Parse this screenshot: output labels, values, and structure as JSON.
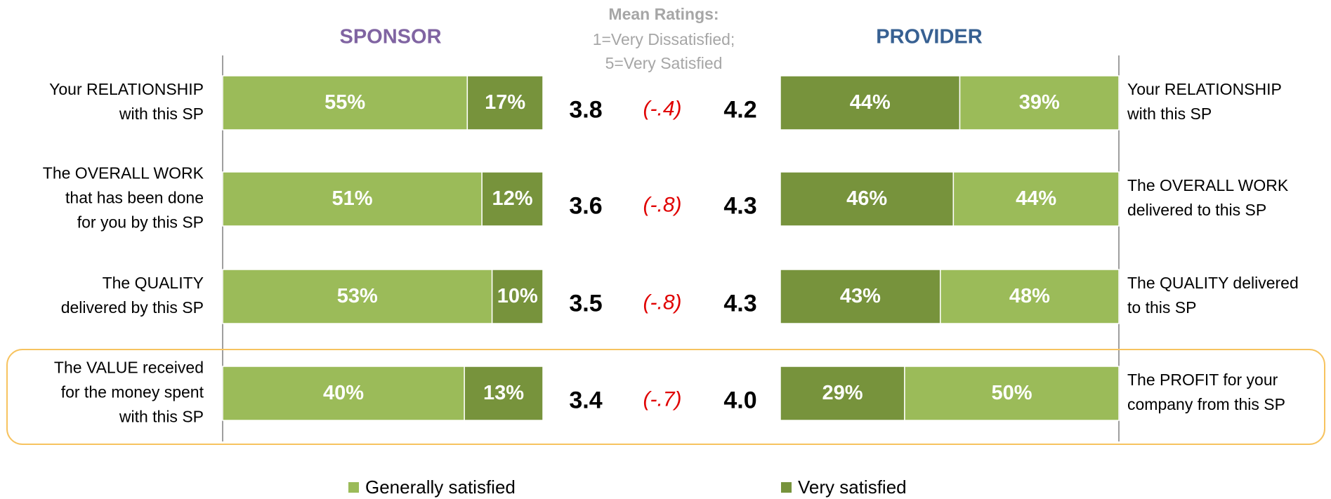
{
  "chart_data": {
    "type": "butterfly_bar",
    "left_title": "SPONSOR",
    "right_title": "PROVIDER",
    "center_title": "Mean Ratings:",
    "center_subtitle": [
      "1=Very Dissatisfied;",
      "5=Very Satisfied"
    ],
    "left_categories": [
      [
        "Your RELATIONSHIP",
        "with this SP"
      ],
      [
        "The OVERALL WORK",
        "that has been done",
        "for you by this SP"
      ],
      [
        "The QUALITY",
        "delivered by this SP"
      ],
      [
        "The VALUE received",
        "for the money spent",
        "with this SP"
      ]
    ],
    "right_categories": [
      [
        "Your RELATIONSHIP",
        "with this SP"
      ],
      [
        "The OVERALL WORK",
        "delivered to this SP"
      ],
      [
        "The QUALITY delivered",
        "to this SP"
      ],
      [
        "The PROFIT for your",
        "company from this SP"
      ]
    ],
    "series": [
      {
        "name": "Generally satisfied",
        "color": "#9bbb59",
        "left_values": [
          55,
          51,
          53,
          40
        ],
        "left_value_labels": [
          "55%",
          "51%",
          "53%",
          "40%"
        ],
        "right_values": [
          39,
          44,
          48,
          50
        ],
        "right_value_labels": [
          "39%",
          "44%",
          "48%",
          "50%"
        ]
      },
      {
        "name": "Very satisfied",
        "color": "#77933c",
        "left_values": [
          17,
          12,
          10,
          13
        ],
        "left_value_labels": [
          "17%",
          "12%",
          "10%",
          "13%"
        ],
        "right_values": [
          44,
          46,
          43,
          29
        ],
        "right_value_labels": [
          "44%",
          "46%",
          "43%",
          "29%"
        ]
      }
    ],
    "sponsor_means": {
      "values": [
        3.8,
        3.6,
        3.5,
        3.4
      ]
    },
    "provider_means": {
      "values": [
        4.2,
        4.3,
        4.3,
        4.0
      ],
      "value_labels": [
        "4.2",
        "4.3",
        "4.3",
        "4.0"
      ]
    },
    "gaps": {
      "values": [
        -0.4,
        -0.8,
        -0.8,
        -0.7
      ],
      "value_labels": [
        "(-.4)",
        "(-.8)",
        "(-.8)",
        "(-.7)"
      ]
    },
    "left_title_color": "#8064a2",
    "right_title_color": "#376092",
    "gap_color": "#e00000",
    "highlight_row": 3,
    "highlight_color": "#f7c35f"
  }
}
